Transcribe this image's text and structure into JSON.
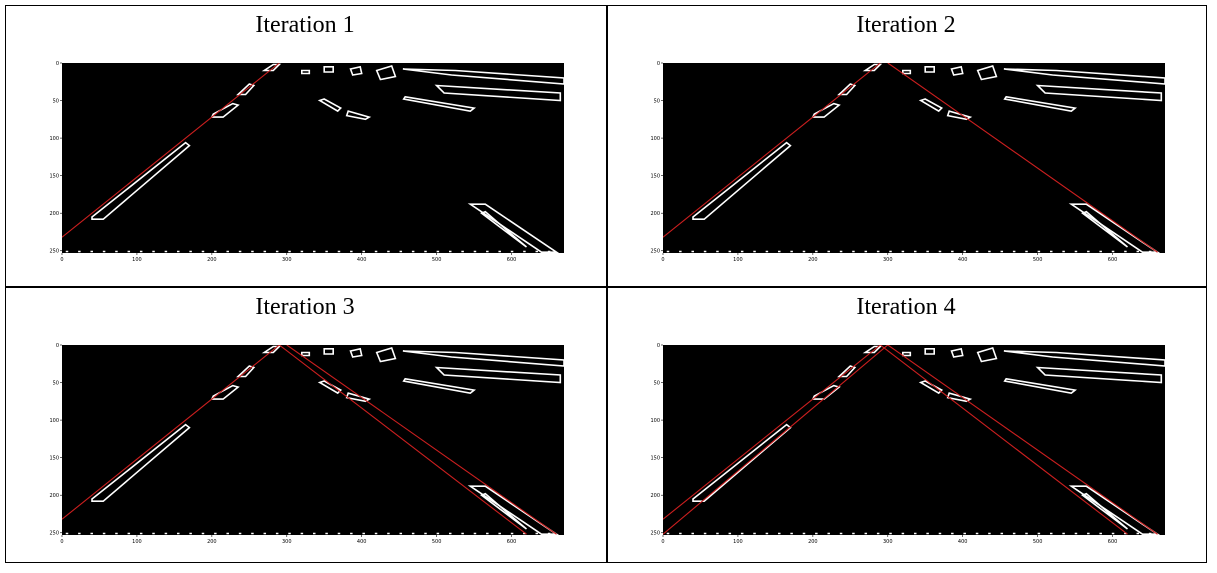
{
  "panels": [
    {
      "title": "Iteration 1"
    },
    {
      "title": "Iteration 2"
    },
    {
      "title": "Iteration 3"
    },
    {
      "title": "Iteration 4"
    }
  ],
  "plot": {
    "x_ticks": [
      "0",
      "100",
      "200",
      "300",
      "400",
      "500",
      "600"
    ],
    "y_ticks": [
      "0",
      "50",
      "100",
      "150",
      "200",
      "250"
    ],
    "xlim": [
      0,
      670
    ],
    "ylim": [
      0,
      253
    ],
    "background_color": "#000000",
    "lane_mark_color": "#ffffff",
    "fit_line_color": "#cc1f1f"
  },
  "fitted_lines_by_iteration": [
    [
      [
        [
          0,
          232
        ],
        [
          290,
          0
        ]
      ]
    ],
    [
      [
        [
          0,
          232
        ],
        [
          290,
          0
        ]
      ],
      [
        [
          300,
          0
        ],
        [
          660,
          252
        ]
      ]
    ],
    [
      [
        [
          0,
          232
        ],
        [
          290,
          0
        ]
      ],
      [
        [
          300,
          0
        ],
        [
          660,
          252
        ]
      ],
      [
        [
          290,
          0
        ],
        [
          620,
          252
        ]
      ]
    ],
    [
      [
        [
          0,
          232
        ],
        [
          290,
          0
        ]
      ],
      [
        [
          0,
          252
        ],
        [
          300,
          0
        ]
      ],
      [
        [
          300,
          0
        ],
        [
          660,
          252
        ]
      ],
      [
        [
          290,
          0
        ],
        [
          620,
          252
        ]
      ]
    ]
  ]
}
